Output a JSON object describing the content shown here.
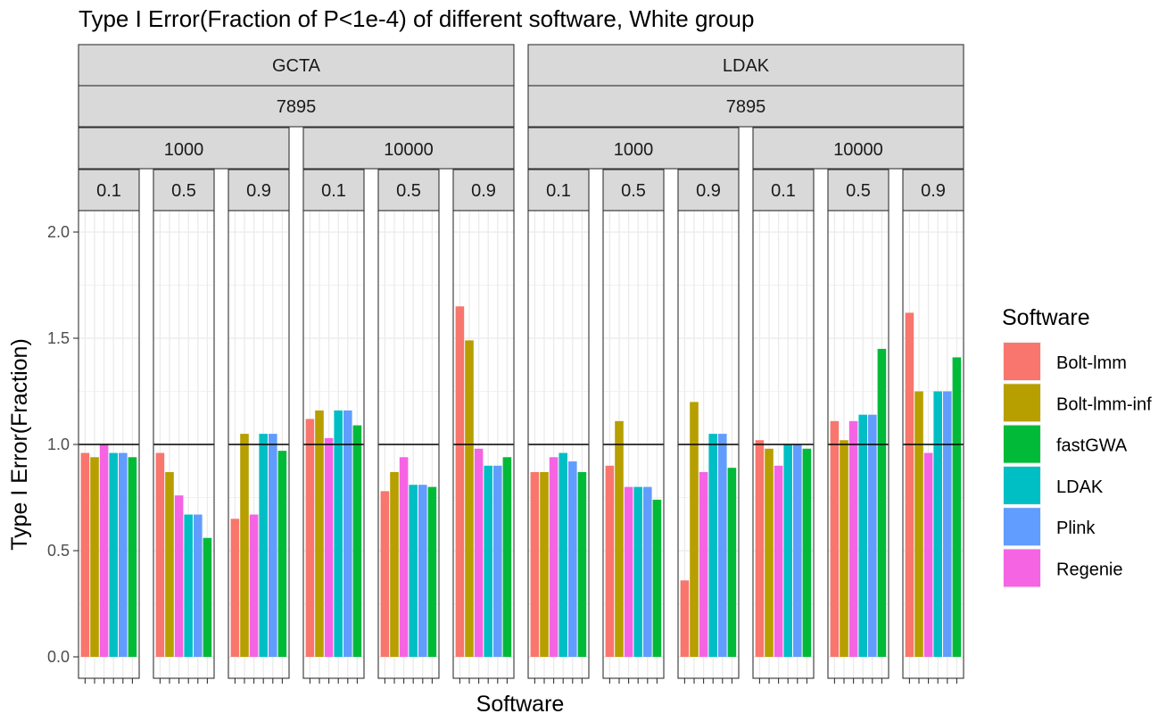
{
  "chart_data": {
    "type": "bar",
    "title": "Type I Error(Fraction of P<1e-4) of different software, White group",
    "xlabel": "Software",
    "ylabel": "Type I Error(Fraction)",
    "ylim": [
      0,
      2.1
    ],
    "yticks": [
      0.0,
      0.5,
      1.0,
      1.5,
      2.0
    ],
    "ytick_labels": [
      "0.0",
      "0.5",
      "1.0",
      "1.5",
      "2.0"
    ],
    "reference_line": 1.0,
    "categories": [
      "Bolt-lmm",
      "Bolt-lmm-inf",
      "fastGWA",
      "LDAK",
      "Plink",
      "Regenie"
    ],
    "bar_order": [
      "Bolt-lmm",
      "Bolt-lmm-inf",
      "Regenie",
      "LDAK",
      "Plink",
      "fastGWA"
    ],
    "colors": {
      "Bolt-lmm": "#F8766D",
      "Bolt-lmm-inf": "#B79F00",
      "fastGWA": "#00BA38",
      "LDAK": "#00BFC4",
      "Plink": "#619CFF",
      "Regenie": "#F564E3"
    },
    "legend": {
      "title": "Software",
      "position": "right",
      "entries": [
        "Bolt-lmm",
        "Bolt-lmm-inf",
        "fastGWA",
        "LDAK",
        "Plink",
        "Regenie"
      ]
    },
    "facet_groups": [
      {
        "label": "GCTA",
        "sublabel": "7895",
        "subgroups": [
          {
            "label": "1000",
            "panels": [
              {
                "label": "0.1",
                "values": {
                  "Bolt-lmm": 0.96,
                  "Bolt-lmm-inf": 0.94,
                  "Regenie": 1.0,
                  "LDAK": 0.96,
                  "Plink": 0.96,
                  "fastGWA": 0.94
                }
              },
              {
                "label": "0.5",
                "values": {
                  "Bolt-lmm": 0.96,
                  "Bolt-lmm-inf": 0.87,
                  "Regenie": 0.76,
                  "LDAK": 0.67,
                  "Plink": 0.67,
                  "fastGWA": 0.56
                }
              },
              {
                "label": "0.9",
                "values": {
                  "Bolt-lmm": 0.65,
                  "Bolt-lmm-inf": 1.05,
                  "Regenie": 0.67,
                  "LDAK": 1.05,
                  "Plink": 1.05,
                  "fastGWA": 0.97
                }
              }
            ]
          },
          {
            "label": "10000",
            "panels": [
              {
                "label": "0.1",
                "values": {
                  "Bolt-lmm": 1.12,
                  "Bolt-lmm-inf": 1.16,
                  "Regenie": 1.03,
                  "LDAK": 1.16,
                  "Plink": 1.16,
                  "fastGWA": 1.09
                }
              },
              {
                "label": "0.5",
                "values": {
                  "Bolt-lmm": 0.78,
                  "Bolt-lmm-inf": 0.87,
                  "Regenie": 0.94,
                  "LDAK": 0.81,
                  "Plink": 0.81,
                  "fastGWA": 0.8
                }
              },
              {
                "label": "0.9",
                "values": {
                  "Bolt-lmm": 1.65,
                  "Bolt-lmm-inf": 1.49,
                  "Regenie": 0.98,
                  "LDAK": 0.9,
                  "Plink": 0.9,
                  "fastGWA": 0.94
                }
              }
            ]
          }
        ]
      },
      {
        "label": "LDAK",
        "sublabel": "7895",
        "subgroups": [
          {
            "label": "1000",
            "panels": [
              {
                "label": "0.1",
                "values": {
                  "Bolt-lmm": 0.87,
                  "Bolt-lmm-inf": 0.87,
                  "Regenie": 0.94,
                  "LDAK": 0.96,
                  "Plink": 0.92,
                  "fastGWA": 0.87
                }
              },
              {
                "label": "0.5",
                "values": {
                  "Bolt-lmm": 0.9,
                  "Bolt-lmm-inf": 1.11,
                  "Regenie": 0.8,
                  "LDAK": 0.8,
                  "Plink": 0.8,
                  "fastGWA": 0.74
                }
              },
              {
                "label": "0.9",
                "values": {
                  "Bolt-lmm": 0.36,
                  "Bolt-lmm-inf": 1.2,
                  "Regenie": 0.87,
                  "LDAK": 1.05,
                  "Plink": 1.05,
                  "fastGWA": 0.89
                }
              }
            ]
          },
          {
            "label": "10000",
            "panels": [
              {
                "label": "0.1",
                "values": {
                  "Bolt-lmm": 1.02,
                  "Bolt-lmm-inf": 0.98,
                  "Regenie": 0.9,
                  "LDAK": 1.0,
                  "Plink": 1.0,
                  "fastGWA": 0.98
                }
              },
              {
                "label": "0.5",
                "values": {
                  "Bolt-lmm": 1.11,
                  "Bolt-lmm-inf": 1.02,
                  "Regenie": 1.11,
                  "LDAK": 1.14,
                  "Plink": 1.14,
                  "fastGWA": 1.45
                }
              },
              {
                "label": "0.9",
                "values": {
                  "Bolt-lmm": 1.62,
                  "Bolt-lmm-inf": 1.25,
                  "Regenie": 0.96,
                  "LDAK": 1.25,
                  "Plink": 1.25,
                  "fastGWA": 1.41
                }
              }
            ]
          }
        ]
      }
    ]
  }
}
